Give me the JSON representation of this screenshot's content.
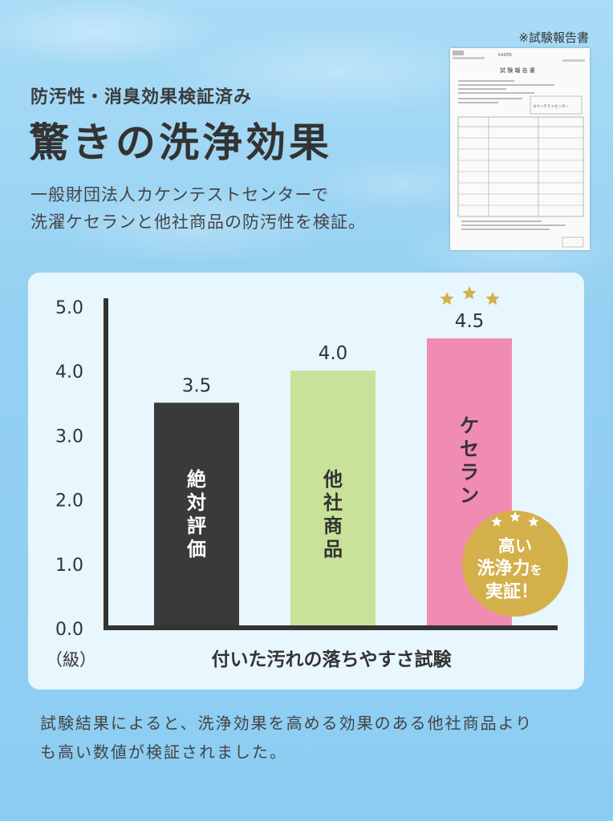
{
  "header": {
    "subtitle": "防汚性・消臭効果検証済み",
    "title": "驚きの洗浄効果",
    "desc_line1": "一般財団法人カケンテストセンターで",
    "desc_line2": "洗濯ケセランと他社商品の防汚性を検証。"
  },
  "report": {
    "caption": "※試験報告書",
    "doc_title": "試 験 報 告 書",
    "logo": "KAKEN",
    "stamp": "カケンテストセンター"
  },
  "badge": {
    "line1": "高い",
    "line2": "洗浄力",
    "line2_suffix": "を",
    "line3": "実証！"
  },
  "footer": {
    "line1": "試験結果によると、洗浄効果を高める効果のある他社商品より",
    "line2": "も高い数値が検証されました。"
  },
  "colors": {
    "bar_absolute": "#3a3a3a",
    "bar_other": "#c9e29a",
    "bar_keseran": "#f08bb1",
    "star": "#d4b04a",
    "badge": "#d4b04a",
    "panel": "#e8f6fd"
  },
  "chart_data": {
    "type": "bar",
    "categories": [
      "絶対評価",
      "他社商品",
      "ケセラン"
    ],
    "values": [
      3.5,
      4.0,
      4.5
    ],
    "value_labels": [
      "3.5",
      "4.0",
      "4.5"
    ],
    "y_ticks": [
      "0.0",
      "1.0",
      "2.0",
      "3.0",
      "4.0",
      "5.0"
    ],
    "ylim": [
      0,
      5
    ],
    "unit_label": "（級）",
    "xlabel": "付いた汚れの落ちやすさ試験",
    "ylabel": "",
    "title": "",
    "grid": false,
    "legend": "none"
  }
}
